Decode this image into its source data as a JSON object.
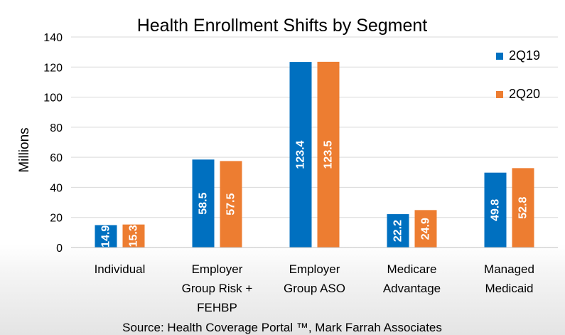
{
  "chart_data": {
    "type": "bar",
    "title": "Health Enrollment Shifts by Segment",
    "ylabel": "Millions",
    "xlabel": "",
    "ylim": [
      0,
      140
    ],
    "yticks": [
      0,
      20,
      40,
      60,
      80,
      100,
      120,
      140
    ],
    "grid": true,
    "legend_position": "top-right",
    "categories": [
      [
        "Individual"
      ],
      [
        "Employer",
        "Group Risk +",
        "FEHBP"
      ],
      [
        "Employer",
        "Group ASO"
      ],
      [
        "Medicare",
        "Advantage"
      ],
      [
        "Managed",
        "Medicaid"
      ]
    ],
    "series": [
      {
        "name": "2Q19",
        "color": "#0070c0",
        "values": [
          14.9,
          58.5,
          123.4,
          22.2,
          49.8
        ],
        "labels": [
          "14.9",
          "58.5",
          "123.4",
          "22.2",
          "49.8"
        ]
      },
      {
        "name": "2Q20",
        "color": "#ed7d31",
        "values": [
          15.3,
          57.5,
          123.5,
          24.9,
          52.8
        ],
        "labels": [
          "15.3",
          "57.5",
          "123.5",
          "24.9",
          "52.8"
        ]
      }
    ],
    "source": "Source: Health Coverage Portal ™, Mark Farrah Associates"
  }
}
